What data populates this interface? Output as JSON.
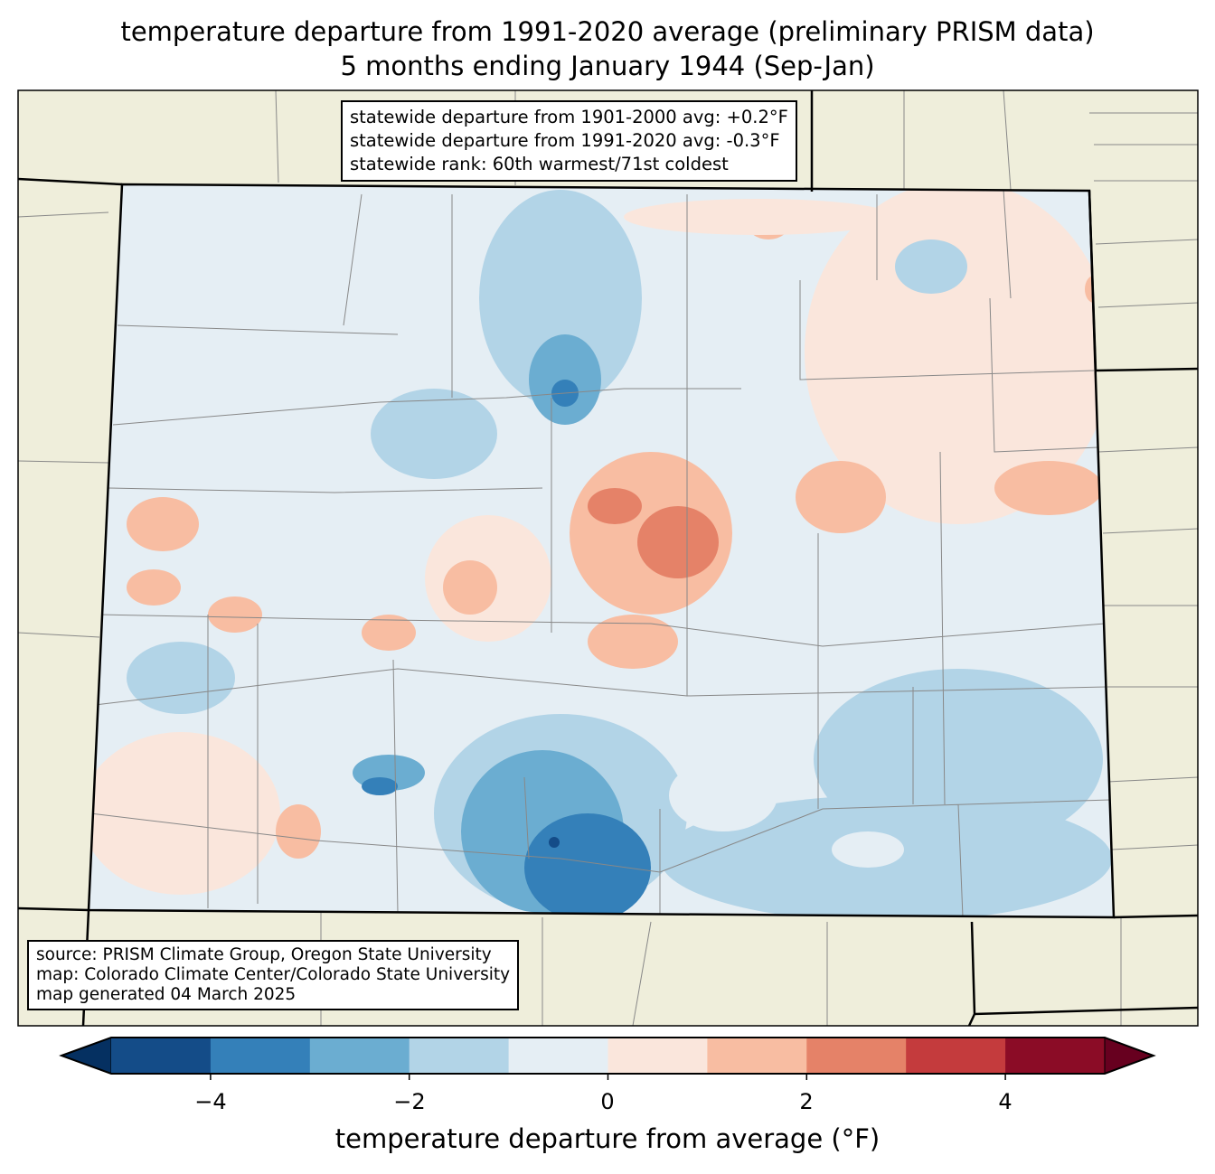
{
  "title": {
    "line1": "temperature departure from 1991-2020 average (preliminary PRISM data)",
    "line2": "5 months ending January 1944 (Sep-Jan)"
  },
  "stats_box": {
    "line1": "statewide departure from 1901-2000 avg: +0.2°F",
    "line2": "statewide departure from 1991-2020 avg: -0.3°F",
    "line3": "statewide rank: 60th warmest/71st coldest"
  },
  "source_box": {
    "line1": "source: PRISM Climate Group, Oregon State University",
    "line2": "map: Colorado Climate Center/Colorado State University",
    "line3": "map generated 04 March 2025"
  },
  "colorbar": {
    "label": "temperature departure from average (°F)",
    "bounds": [
      -5,
      -4,
      -3,
      -2,
      -1,
      0,
      1,
      2,
      3,
      4,
      5
    ],
    "colors": [
      "#144c88",
      "#3480b9",
      "#6badd1",
      "#b2d4e7",
      "#e5eef4",
      "#fae6dc",
      "#f8bda2",
      "#e58268",
      "#c43b3d",
      "#8b0c26"
    ],
    "under_color": "#053061",
    "over_color": "#67001f",
    "ticks": [
      "−4",
      "−2",
      "0",
      "2",
      "4"
    ]
  },
  "map_colors": {
    "land": "#efeedb",
    "background": "#e5eef4"
  }
}
